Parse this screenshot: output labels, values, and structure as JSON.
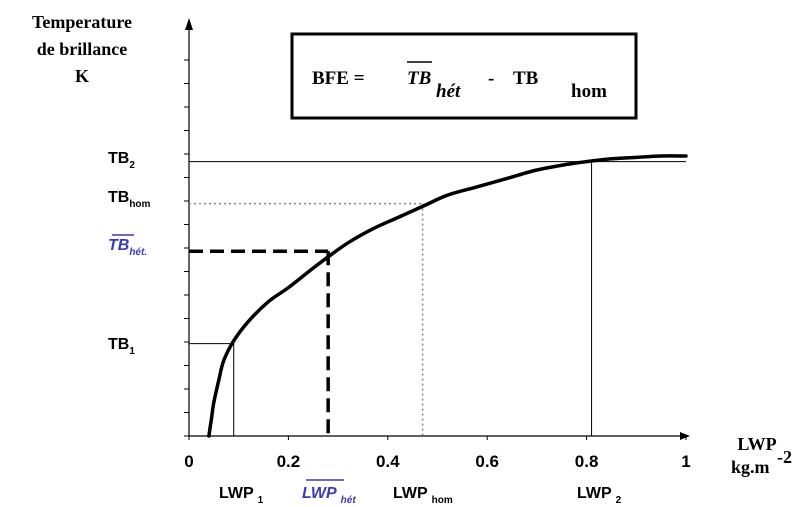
{
  "chart_data": {
    "type": "line",
    "y_title_lines": [
      "Temperature",
      "de brillance",
      "K"
    ],
    "x_title": "LWP",
    "x_unit": "kg.m",
    "x_unit_exp": "-2",
    "x_ticks": [
      0,
      0.2,
      0.4,
      0.6,
      0.8,
      1
    ],
    "x_tick_labels": [
      "0",
      "0.2",
      "0.4",
      "0.6",
      "0.8",
      "1"
    ],
    "xlim": [
      0,
      1
    ],
    "formula": {
      "lhs": "BFE =",
      "term1_main": "TB",
      "term1_sub": "hét",
      "minus": "-",
      "term2_main": "TB",
      "term2_sub": "hom"
    },
    "curve": {
      "x": [
        0.04,
        0.045,
        0.05,
        0.06,
        0.07,
        0.09,
        0.12,
        0.16,
        0.2,
        0.25,
        0.28,
        0.32,
        0.37,
        0.42,
        0.47,
        0.52,
        0.58,
        0.64,
        0.7,
        0.76,
        0.8,
        0.85,
        0.9,
        0.95,
        1.0
      ],
      "y": [
        0.0,
        0.06,
        0.12,
        0.2,
        0.27,
        0.34,
        0.41,
        0.48,
        0.53,
        0.6,
        0.64,
        0.69,
        0.74,
        0.78,
        0.82,
        0.86,
        0.89,
        0.92,
        0.95,
        0.97,
        0.98,
        0.99,
        0.995,
        1.0,
        1.0
      ]
    },
    "markers": [
      {
        "x": 0.09,
        "y": 0.33,
        "x_main": "LWP",
        "x_sub": "1",
        "y_main": "TB",
        "y_sub": "1",
        "style": "solid",
        "color": "#000000"
      },
      {
        "x": 0.28,
        "y": 0.66,
        "x_main": "LWP",
        "x_sub": "hét",
        "y_main": "TB",
        "y_sub": "hét.",
        "style": "dashed",
        "color": "#3b3bb5",
        "overbar": true
      },
      {
        "x": 0.47,
        "y": 0.83,
        "x_main": "LWP",
        "x_sub": "hom",
        "y_main": "TB",
        "y_sub": "hom",
        "style": "dotted",
        "color": "#000000"
      },
      {
        "x": 0.81,
        "y": 0.98,
        "x_main": "LWP",
        "x_sub": "2",
        "y_main": "TB",
        "y_sub": "2",
        "style": "solid",
        "color": "#000000"
      }
    ]
  }
}
